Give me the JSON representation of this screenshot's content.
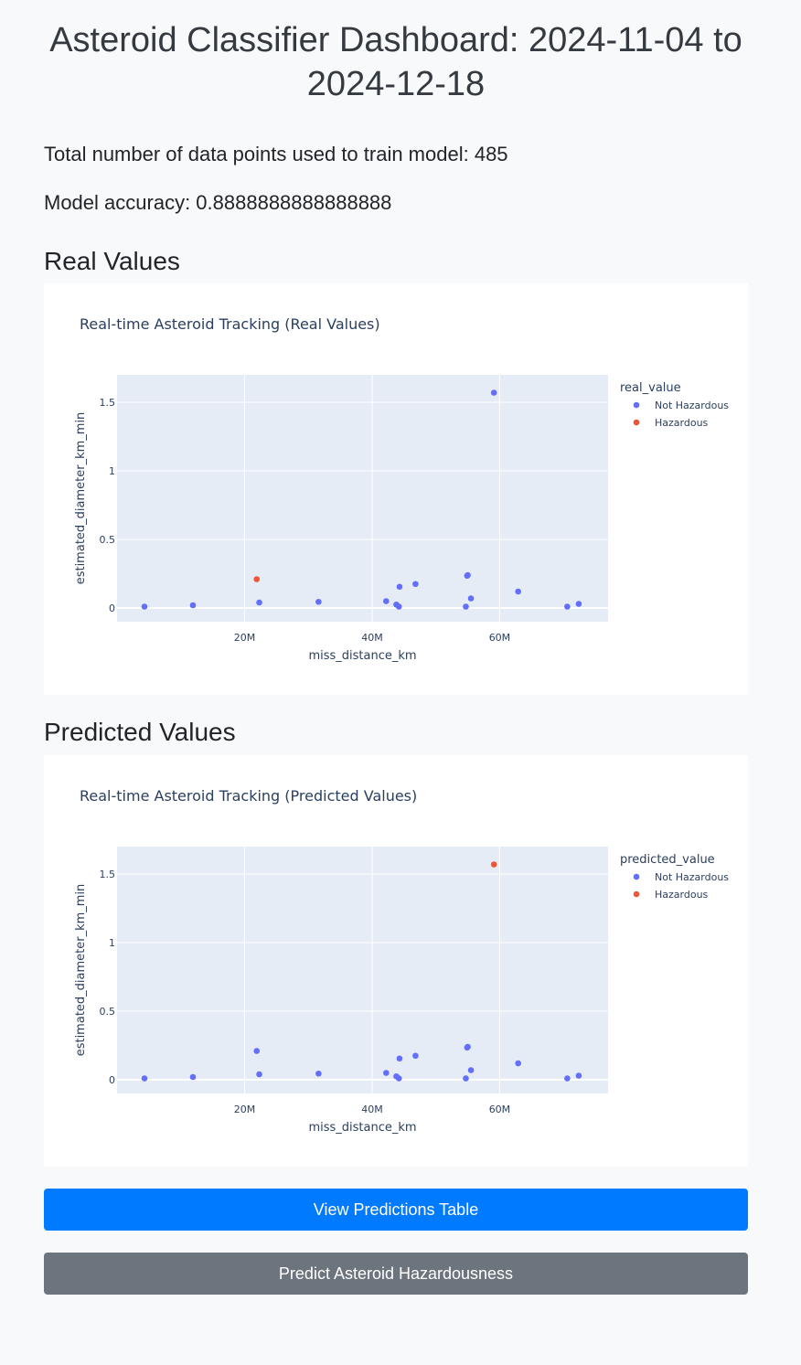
{
  "page": {
    "title": "Asteroid Classifier Dashboard: 2024-11-04 to 2024-12-18",
    "total_points_text": "Total number of data points used to train model: 485",
    "accuracy_text": "Model accuracy: 0.8888888888888888"
  },
  "sections": {
    "real_heading": "Real Values",
    "predicted_heading": "Predicted Values"
  },
  "buttons": {
    "view_table": "View Predictions Table",
    "predict": "Predict Asteroid Hazardousness"
  },
  "colors": {
    "not_hazardous": "#636efa",
    "hazardous": "#ef553b",
    "plot_bg": "#e5ecf6",
    "primary_button": "#007bff",
    "secondary_button": "#6c757d"
  },
  "chart_data": [
    {
      "id": "real",
      "type": "scatter",
      "title": "Real-time Asteroid Tracking (Real Values)",
      "xlabel": "miss_distance_km",
      "ylabel": "estimated_diameter_km_min",
      "xlim": [
        0,
        77000000
      ],
      "ylim": [
        -0.1,
        1.7
      ],
      "xticks": [
        {
          "value": 20000000,
          "label": "20M"
        },
        {
          "value": 40000000,
          "label": "40M"
        },
        {
          "value": 60000000,
          "label": "60M"
        }
      ],
      "yticks": [
        {
          "value": 0,
          "label": "0"
        },
        {
          "value": 0.5,
          "label": "0.5"
        },
        {
          "value": 1,
          "label": "1"
        },
        {
          "value": 1.5,
          "label": "1.5"
        }
      ],
      "grid": true,
      "legend_title": "real_value",
      "legend_position": "right",
      "series": [
        {
          "name": "Not Hazardous",
          "color_key": "not_hazardous",
          "x": [
            4300000,
            11900000,
            22300000,
            31600000,
            42200000,
            43800000,
            44200000,
            44300000,
            46800000,
            54700000,
            54900000,
            55000000,
            55500000,
            59100000,
            62900000,
            70600000,
            72400000
          ],
          "y": [
            0.01,
            0.02,
            0.04,
            0.045,
            0.05,
            0.025,
            0.01,
            0.155,
            0.175,
            0.01,
            0.235,
            0.24,
            0.07,
            1.57,
            0.12,
            0.01,
            0.03
          ]
        },
        {
          "name": "Hazardous",
          "color_key": "hazardous",
          "x": [
            21900000
          ],
          "y": [
            0.21
          ]
        }
      ]
    },
    {
      "id": "predicted",
      "type": "scatter",
      "title": "Real-time Asteroid Tracking (Predicted Values)",
      "xlabel": "miss_distance_km",
      "ylabel": "estimated_diameter_km_min",
      "xlim": [
        0,
        77000000
      ],
      "ylim": [
        -0.1,
        1.7
      ],
      "xticks": [
        {
          "value": 20000000,
          "label": "20M"
        },
        {
          "value": 40000000,
          "label": "40M"
        },
        {
          "value": 60000000,
          "label": "60M"
        }
      ],
      "yticks": [
        {
          "value": 0,
          "label": "0"
        },
        {
          "value": 0.5,
          "label": "0.5"
        },
        {
          "value": 1,
          "label": "1"
        },
        {
          "value": 1.5,
          "label": "1.5"
        }
      ],
      "grid": true,
      "legend_title": "predicted_value",
      "legend_position": "right",
      "series": [
        {
          "name": "Not Hazardous",
          "color_key": "not_hazardous",
          "x": [
            4300000,
            11900000,
            21900000,
            22300000,
            31600000,
            42200000,
            43800000,
            44200000,
            44300000,
            46800000,
            54700000,
            54900000,
            55000000,
            55500000,
            62900000,
            70600000,
            72400000
          ],
          "y": [
            0.01,
            0.02,
            0.21,
            0.04,
            0.045,
            0.05,
            0.025,
            0.01,
            0.155,
            0.175,
            0.01,
            0.235,
            0.24,
            0.07,
            0.12,
            0.01,
            0.03
          ]
        },
        {
          "name": "Hazardous",
          "color_key": "hazardous",
          "x": [
            59100000
          ],
          "y": [
            1.57
          ]
        }
      ]
    }
  ]
}
